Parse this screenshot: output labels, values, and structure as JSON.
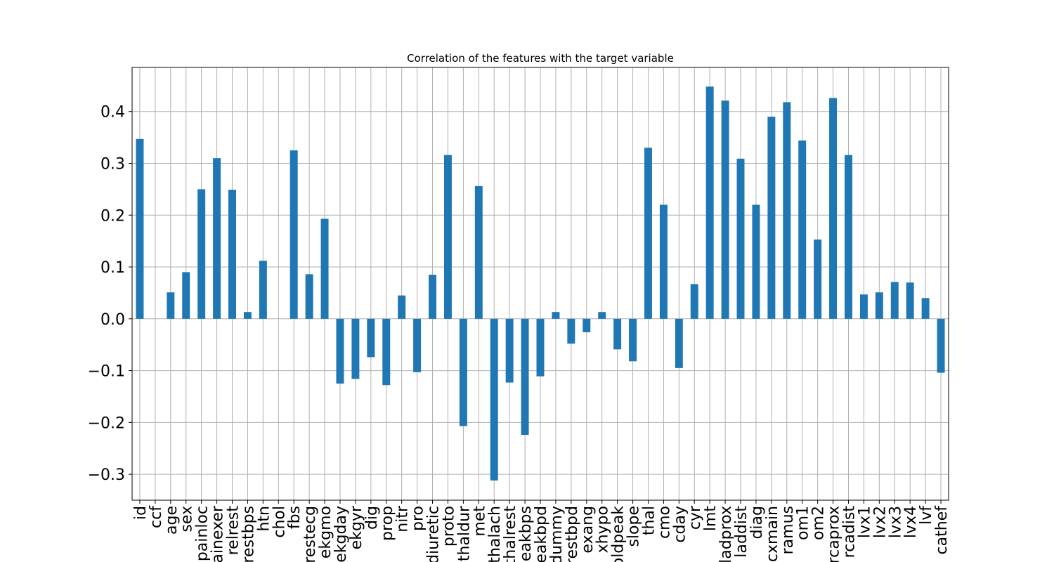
{
  "chart_data": {
    "type": "bar",
    "title": "Correlation of the features with the target variable",
    "xlabel": "",
    "ylabel": "",
    "ylim": [
      -0.35,
      0.485
    ],
    "yticks": [
      -0.3,
      -0.2,
      -0.1,
      0.0,
      0.1,
      0.2,
      0.3,
      0.4
    ],
    "ytick_labels": [
      "−0.3",
      "−0.2",
      "−0.1",
      "0.0",
      "0.1",
      "0.2",
      "0.3",
      "0.4"
    ],
    "grid": true,
    "bar_color": "#1f77b4",
    "categories": [
      "id",
      "ccf",
      "age",
      "sex",
      "painloc",
      "painexer",
      "relrest",
      "trestbps",
      "htn",
      "chol",
      "fbs",
      "restecg",
      "ekgmo",
      "ekgday",
      "ekgyr",
      "dig",
      "prop",
      "nitr",
      "pro",
      "diuretic",
      "proto",
      "thaldur",
      "met",
      "thalach",
      "thalrest",
      "tpeakbps",
      "tpeakbpd",
      "dummy",
      "trestbpd",
      "exang",
      "xhypo",
      "oldpeak",
      "slope",
      "thal",
      "cmo",
      "cday",
      "cyr",
      "lmt",
      "ladprox",
      "laddist",
      "diag",
      "cxmain",
      "ramus",
      "om1",
      "om2",
      "rcaprox",
      "rcadist",
      "lvx1",
      "lvx2",
      "lvx3",
      "lvx4",
      "lvf",
      "cathef"
    ],
    "values": [
      0.347,
      0.0,
      0.051,
      0.09,
      0.25,
      0.31,
      0.249,
      0.013,
      0.112,
      0.0,
      0.325,
      0.086,
      0.193,
      -0.125,
      -0.116,
      -0.074,
      -0.128,
      0.045,
      -0.103,
      0.085,
      0.316,
      -0.207,
      0.256,
      -0.312,
      -0.123,
      -0.224,
      -0.111,
      0.013,
      -0.048,
      -0.026,
      0.013,
      -0.059,
      -0.082,
      0.33,
      0.22,
      -0.095,
      0.067,
      0.448,
      0.421,
      0.309,
      0.22,
      0.39,
      0.418,
      0.344,
      0.153,
      0.426,
      0.316,
      0.047,
      0.051,
      0.071,
      0.07,
      0.04,
      -0.104
    ]
  }
}
